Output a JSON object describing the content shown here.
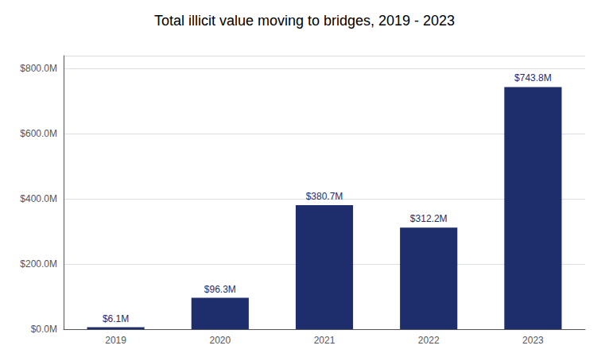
{
  "chart_data": {
    "type": "bar",
    "title": "Total illicit value moving to bridges, 2019 - 2023",
    "categories": [
      "2019",
      "2020",
      "2021",
      "2022",
      "2023"
    ],
    "values": [
      6.1,
      96.3,
      380.7,
      312.2,
      743.8
    ],
    "value_labels": [
      "$6.1M",
      "$96.3M",
      "$380.7M",
      "$312.2M",
      "$743.8M"
    ],
    "data_labels": true,
    "color": "#1e2d6b",
    "ylim": [
      0,
      840
    ],
    "yticks": [
      {
        "value": 0,
        "label": "$0.0M"
      },
      {
        "value": 200,
        "label": "$200.0M"
      },
      {
        "value": 400,
        "label": "$400.0M"
      },
      {
        "value": 600,
        "label": "$600.0M"
      },
      {
        "value": 800,
        "label": "$800.0M"
      }
    ],
    "grid": true
  }
}
